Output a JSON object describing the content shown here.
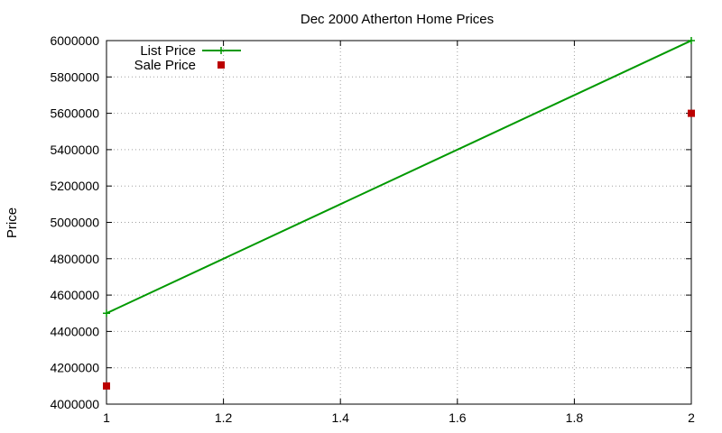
{
  "chart_data": {
    "type": "line",
    "title": "Dec 2000 Atherton Home Prices",
    "xlabel": "",
    "ylabel": "Price",
    "xlim": [
      1,
      2
    ],
    "ylim": [
      4000000,
      6000000
    ],
    "xticks": [
      "1",
      "1.2",
      "1.4",
      "1.6",
      "1.8",
      "2"
    ],
    "yticks": [
      "4000000",
      "4200000",
      "4400000",
      "4600000",
      "4800000",
      "5000000",
      "5200000",
      "5400000",
      "5600000",
      "5800000",
      "6000000"
    ],
    "xtick_values": [
      1,
      1.2,
      1.4,
      1.6,
      1.8,
      2
    ],
    "ytick_values": [
      4000000,
      4200000,
      4400000,
      4600000,
      4800000,
      5000000,
      5200000,
      5400000,
      5600000,
      5800000,
      6000000
    ],
    "grid": true,
    "legend_position": "top-left",
    "series": [
      {
        "name": "List Price",
        "style": "linespoints",
        "marker": "plus",
        "color": "#009900",
        "x": [
          1,
          2
        ],
        "y": [
          4500000,
          6000000
        ]
      },
      {
        "name": "Sale Price",
        "style": "points",
        "marker": "square",
        "color": "#bb0000",
        "x": [
          1,
          2
        ],
        "y": [
          4100000,
          5600000
        ]
      }
    ]
  }
}
